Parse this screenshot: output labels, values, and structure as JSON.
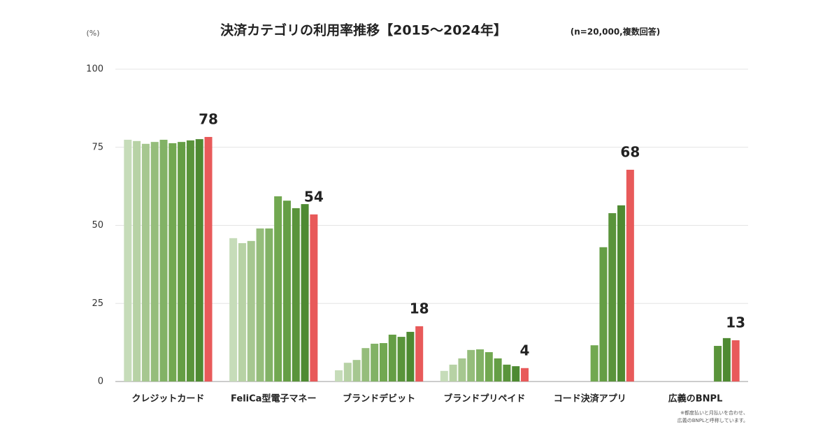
{
  "chart_data": {
    "type": "bar",
    "title": "決済カテゴリの利用率推移【2015～2024年】",
    "subtitle": "(n=20,000,複数回答)",
    "y_unit": "(%)",
    "footnote": [
      "※都度払いと月払いを合わせ、",
      "広義のBNPLと呼称しています。"
    ],
    "categories": [
      "クレジットカード",
      "FeliCa型電子マネー",
      "ブランドデビット",
      "ブランドプリペイド",
      "コード決済アプリ",
      "広義のBNPL"
    ],
    "series": [
      {
        "color": "#c6dcb9",
        "values": [
          77.4,
          45.9,
          3.6,
          3.4,
          null,
          null
        ]
      },
      {
        "color": "#b7d2a5",
        "values": [
          77.0,
          44.3,
          6.0,
          5.4,
          null,
          null
        ]
      },
      {
        "color": "#a6c790",
        "values": [
          76.1,
          45.0,
          6.9,
          7.4,
          null,
          null
        ]
      },
      {
        "color": "#95bd7b",
        "values": [
          76.7,
          49.0,
          10.7,
          10.1,
          null,
          null
        ]
      },
      {
        "color": "#82b266",
        "values": [
          77.4,
          49.0,
          12.1,
          10.3,
          null,
          null
        ]
      },
      {
        "color": "#72a851",
        "values": [
          76.3,
          59.3,
          12.3,
          9.4,
          11.6,
          null
        ]
      },
      {
        "color": "#659e45",
        "values": [
          76.7,
          57.9,
          15.0,
          7.4,
          43.0,
          null
        ]
      },
      {
        "color": "#5a943b",
        "values": [
          77.2,
          55.5,
          14.3,
          5.4,
          53.9,
          11.4
        ]
      },
      {
        "color": "#4e8a32",
        "values": [
          77.6,
          56.8,
          15.9,
          4.9,
          56.4,
          13.9
        ]
      },
      {
        "color": "#e85a5a",
        "values": [
          78.3,
          53.5,
          17.7,
          4.3,
          67.8,
          13.2
        ],
        "value_labels": [
          "78",
          "54",
          "18",
          "4",
          "68",
          "13"
        ]
      }
    ],
    "ylim": [
      0,
      100
    ],
    "yticks": [
      0,
      25,
      50,
      75,
      100
    ],
    "grid": true
  }
}
